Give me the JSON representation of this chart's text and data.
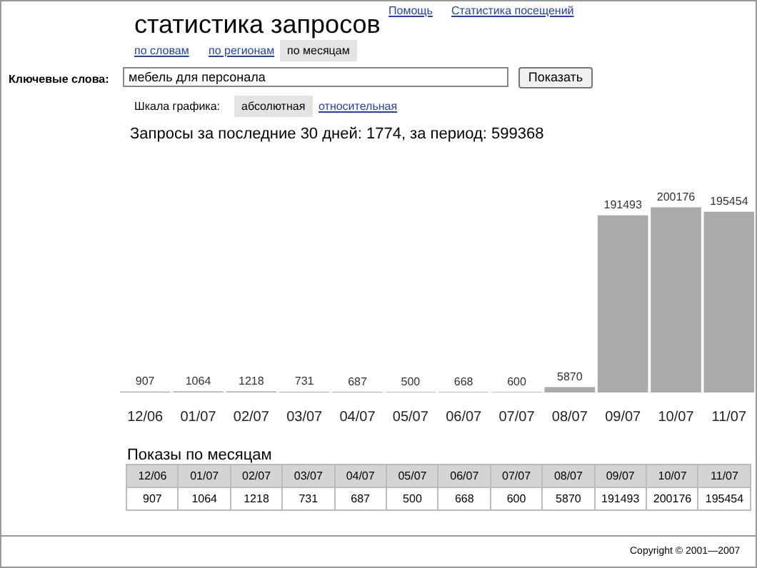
{
  "chart_data": {
    "type": "bar",
    "title": "Запросы за последние 30 дней: 1774, за период: 599368",
    "categories": [
      "12/06",
      "01/07",
      "02/07",
      "03/07",
      "04/07",
      "05/07",
      "06/07",
      "07/07",
      "08/07",
      "09/07",
      "10/07",
      "11/07"
    ],
    "values": [
      907,
      1064,
      1218,
      731,
      687,
      500,
      668,
      600,
      5870,
      191493,
      200176,
      195454
    ],
    "value_labels": [
      "907",
      "1064",
      "1218",
      "731",
      "687",
      "500",
      "668",
      "600",
      "5870",
      "191493",
      "200176",
      "195454"
    ],
    "color": "#aaaaaa",
    "annotations": [
      "статистика запросов",
      "Помощь",
      "Статистика посещений",
      "по словам",
      "по регионам",
      "по месяцам",
      "Ключевые слова:",
      "мебель для персонала",
      "Показать",
      "Шкала графика:",
      "абсолютная",
      "относительная",
      "Показы по месяцам",
      "Copyright © 2001—2007",
      "907",
      "1064",
      "1218",
      "731",
      "687",
      "500",
      "668",
      "600",
      "5870",
      "191493",
      "200176",
      "195454"
    ]
  }
}
